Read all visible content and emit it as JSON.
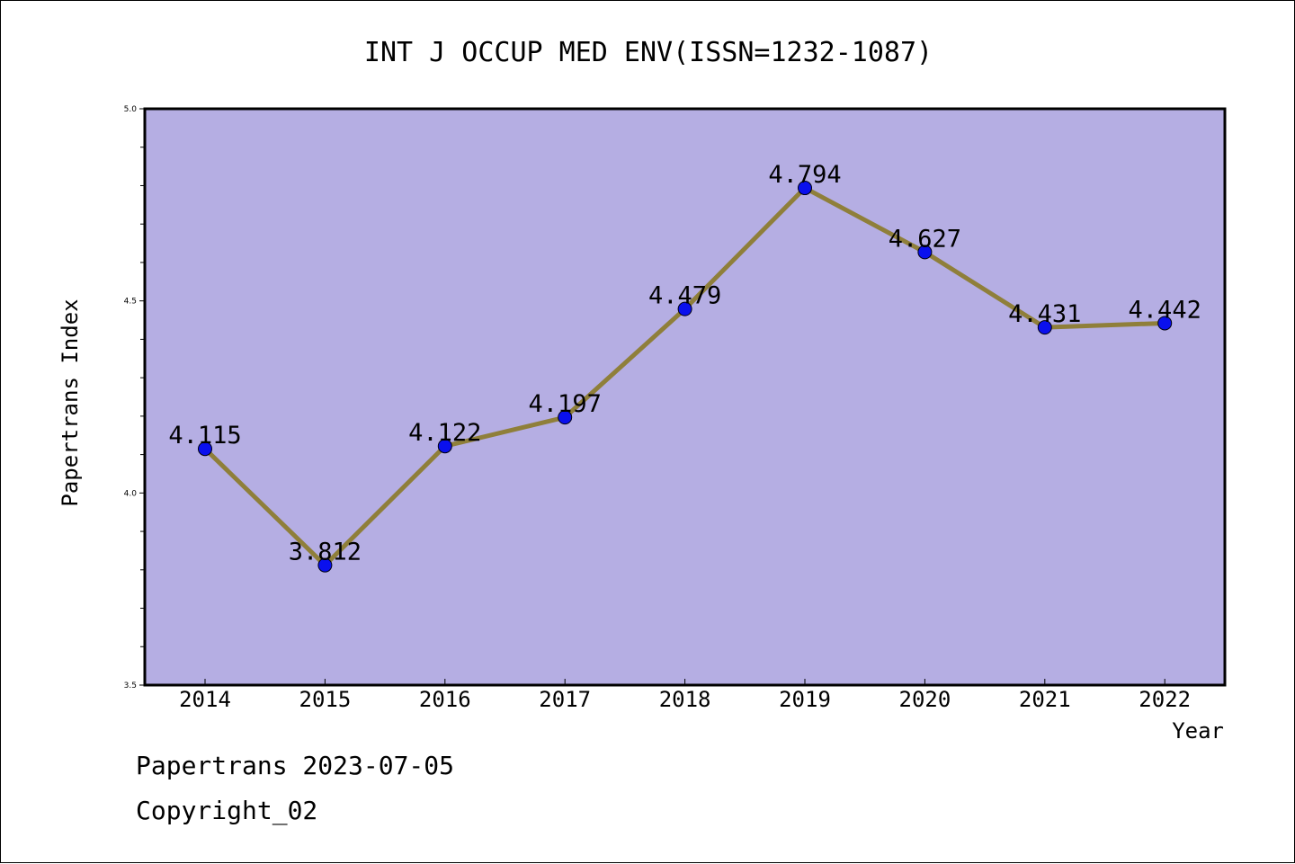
{
  "chart_data": {
    "type": "line",
    "title": "INT J OCCUP MED ENV(ISSN=1232-1087)",
    "xlabel": "Year",
    "ylabel": "Papertrans Index",
    "categories": [
      "2014",
      "2015",
      "2016",
      "2017",
      "2018",
      "2019",
      "2020",
      "2021",
      "2022"
    ],
    "values": [
      4.115,
      3.812,
      4.122,
      4.197,
      4.479,
      4.794,
      4.627,
      4.431,
      4.442
    ],
    "value_labels": [
      "4.115",
      "3.812",
      "4.122",
      "4.197",
      "4.479",
      "4.794",
      "4.627",
      "4.431",
      "4.442"
    ],
    "ylim": [
      3.5,
      5.0
    ],
    "y_ticks": [
      "3.5",
      "4.0",
      "4.5",
      "5.0"
    ],
    "grid": false,
    "colors": {
      "plot_background": "#b5aee3",
      "line": "#8f7f3a",
      "marker": "#0a10ee"
    }
  },
  "footer": {
    "date_line": "Papertrans 2023-07-05",
    "copyright_line": "Copyright_02"
  }
}
